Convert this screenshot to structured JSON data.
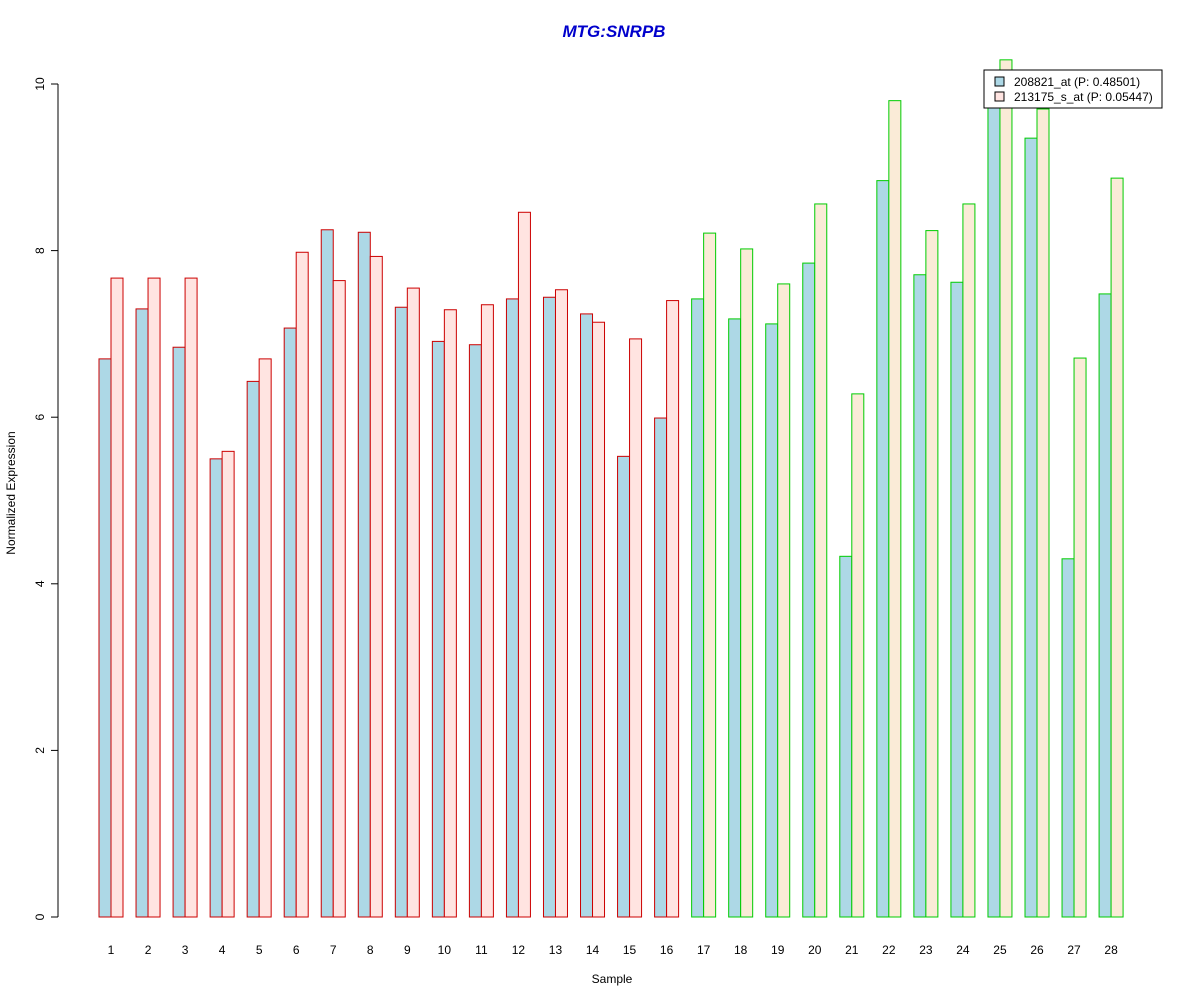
{
  "chart_data": {
    "type": "bar",
    "title": "MTG:SNRPB",
    "xlabel": "Sample",
    "ylabel": "Normalized Expression",
    "ylim": [
      0,
      10
    ],
    "yticks": [
      0,
      2,
      4,
      6,
      8,
      10
    ],
    "grid": false,
    "legend_position": "top-right",
    "categories": [
      "1",
      "2",
      "3",
      "4",
      "5",
      "6",
      "7",
      "8",
      "9",
      "10",
      "11",
      "12",
      "13",
      "14",
      "15",
      "16",
      "17",
      "18",
      "19",
      "20",
      "21",
      "22",
      "23",
      "24",
      "25",
      "26",
      "27",
      "28"
    ],
    "series": [
      {
        "name": "208821_at (P: 0.48501)",
        "fill": "#add8e6",
        "values": [
          6.7,
          7.3,
          6.84,
          5.5,
          6.43,
          7.07,
          8.25,
          8.22,
          7.32,
          6.91,
          6.87,
          7.42,
          7.44,
          7.24,
          5.53,
          5.99,
          7.42,
          7.18,
          7.12,
          7.85,
          4.33,
          8.84,
          7.71,
          7.62,
          9.85,
          9.35,
          4.3,
          7.48
        ]
      },
      {
        "name": "213175_s_at (P: 0.05447)",
        "fill_group1": "#ffe4e1",
        "fill_group2": "#faebd7",
        "values": [
          7.67,
          7.67,
          7.67,
          5.59,
          6.7,
          7.98,
          7.64,
          7.93,
          7.55,
          7.29,
          7.35,
          8.46,
          7.53,
          7.14,
          6.94,
          7.4,
          8.21,
          8.02,
          7.6,
          8.56,
          6.28,
          9.8,
          8.24,
          8.56,
          10.29,
          9.7,
          6.71,
          8.87
        ]
      }
    ],
    "group_border_colors": [
      "#cc0000",
      "#00cc00"
    ],
    "group_of_sample": [
      1,
      1,
      1,
      1,
      1,
      1,
      1,
      1,
      1,
      1,
      1,
      1,
      1,
      1,
      1,
      1,
      2,
      2,
      2,
      2,
      2,
      2,
      2,
      2,
      2,
      2,
      2,
      2
    ],
    "title_color": "#0000cc",
    "legend_fills": [
      "#add8e6",
      "#ffe4e1"
    ]
  }
}
